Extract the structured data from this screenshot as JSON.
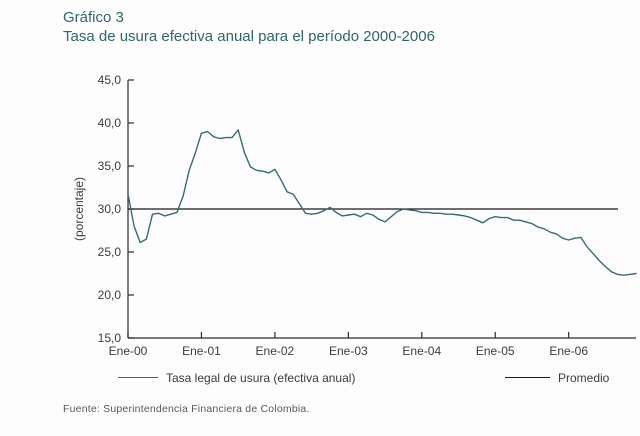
{
  "header": {
    "kicker": "Gráfico 3",
    "title": "Tasa de usura efectiva anual para el período 2000-2006"
  },
  "footer": {
    "source": "Fuente: Superintendencia Financiera de Colombia."
  },
  "colors": {
    "title_teal": "#2d6767",
    "series_teal": "#376b74",
    "promedio_black": "#1a1a1a",
    "axis": "#2b2b2b"
  },
  "chart_data": {
    "type": "line",
    "title": "Tasa de usura efectiva anual para el período 2000-2006",
    "xlabel": "",
    "ylabel": "(porcentaje)",
    "ylim": [
      15,
      45
    ],
    "grid": false,
    "legend_position": "bottom",
    "y_ticks": [
      {
        "value": 45,
        "label": "45,0"
      },
      {
        "value": 40,
        "label": "40,0"
      },
      {
        "value": 35,
        "label": "35,0"
      },
      {
        "value": 30,
        "label": "30,0"
      },
      {
        "value": 25,
        "label": "25,0"
      },
      {
        "value": 20,
        "label": "20,0"
      },
      {
        "value": 15,
        "label": "15,0"
      }
    ],
    "x_ticks": [
      {
        "month_index": 0,
        "label": "Ene-00"
      },
      {
        "month_index": 12,
        "label": "Ene-01"
      },
      {
        "month_index": 24,
        "label": "Ene-02"
      },
      {
        "month_index": 36,
        "label": "Ene-03"
      },
      {
        "month_index": 48,
        "label": "Ene-04"
      },
      {
        "month_index": 60,
        "label": "Ene-05"
      },
      {
        "month_index": 72,
        "label": "Ene-06"
      }
    ],
    "series": [
      {
        "name": "Tasa legal de usura (efectiva anual)",
        "type": "line",
        "color": "#376b74",
        "frequency": "monthly",
        "start": "Ene-00",
        "end": "Dic-06",
        "values": [
          31.7,
          28.0,
          26.1,
          26.5,
          29.4,
          29.5,
          29.2,
          29.4,
          29.6,
          31.5,
          34.5,
          36.5,
          38.8,
          39.0,
          38.4,
          38.2,
          38.3,
          38.3,
          39.2,
          36.6,
          34.9,
          34.5,
          34.4,
          34.2,
          34.6,
          33.4,
          32.0,
          31.7,
          30.6,
          29.5,
          29.4,
          29.5,
          29.8,
          30.2,
          29.6,
          29.2,
          29.3,
          29.4,
          29.1,
          29.5,
          29.3,
          28.8,
          28.5,
          29.1,
          29.7,
          30.0,
          29.9,
          29.8,
          29.6,
          29.6,
          29.5,
          29.5,
          29.4,
          29.4,
          29.3,
          29.2,
          29.0,
          28.7,
          28.4,
          28.9,
          29.1,
          29.0,
          29.0,
          28.7,
          28.7,
          28.5,
          28.3,
          27.9,
          27.7,
          27.3,
          27.1,
          26.6,
          26.4,
          26.6,
          26.7,
          25.6,
          24.8,
          24.0,
          23.3,
          22.7,
          22.4,
          22.3,
          22.4,
          22.5
        ]
      },
      {
        "name": "Promedio",
        "type": "hline",
        "color": "#1a1a1a",
        "value": 30.0
      }
    ]
  }
}
